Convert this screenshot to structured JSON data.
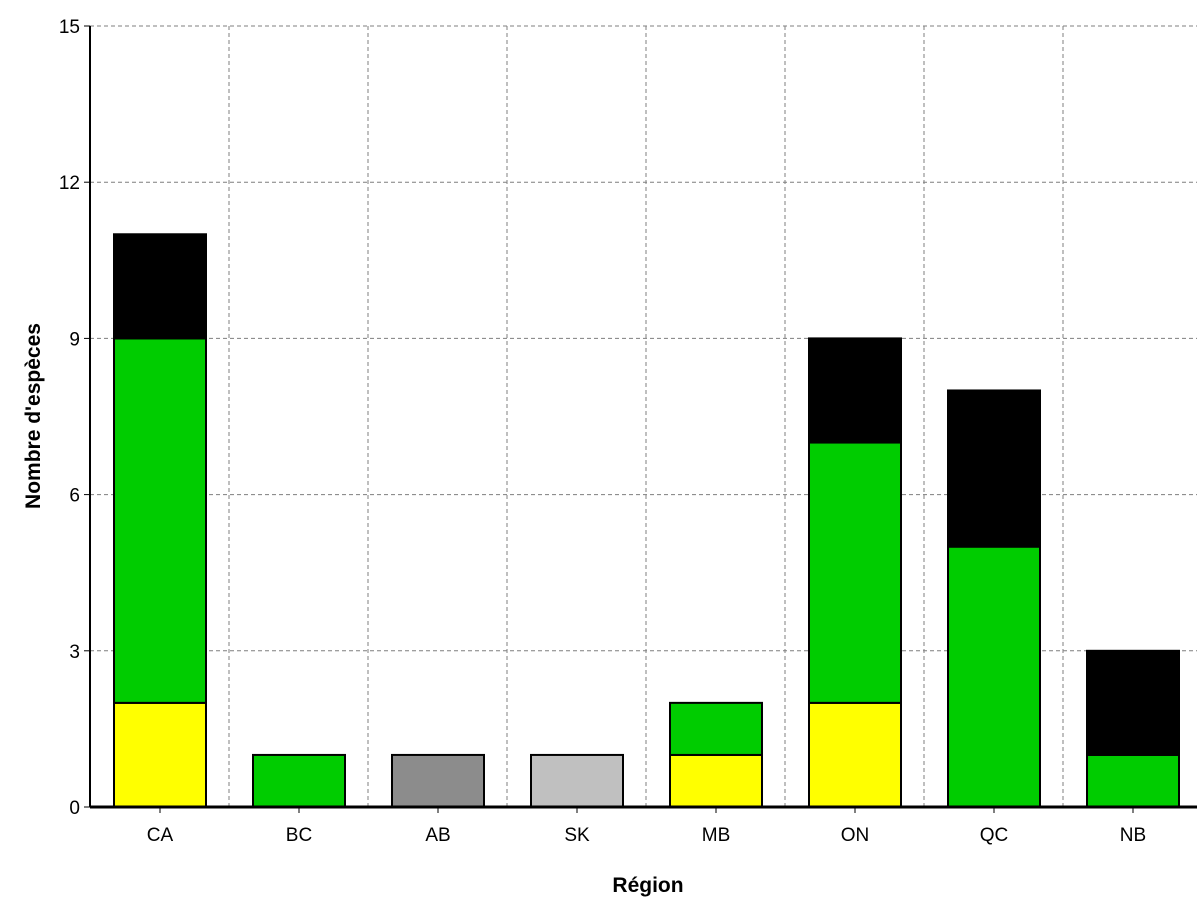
{
  "chart_data": {
    "type": "bar",
    "stacked": true,
    "title": "",
    "xlabel": "Région",
    "ylabel": "Nombre d'espèces",
    "ylim": [
      0,
      15
    ],
    "yticks": [
      "0",
      "3",
      "6",
      "9",
      "12",
      "15"
    ],
    "grid": true,
    "legend": "none",
    "categories": [
      "CA",
      "BC",
      "AB",
      "SK",
      "MB",
      "ON",
      "QC",
      "NB"
    ],
    "series": [
      {
        "color": "#ffff00",
        "values": [
          2,
          0,
          0,
          0,
          1,
          2,
          0,
          0
        ]
      },
      {
        "color": "#00cc00",
        "values": [
          7,
          1,
          0,
          0,
          1,
          5,
          5,
          1
        ]
      },
      {
        "color": "#000000",
        "values": [
          2,
          0,
          0,
          0,
          0,
          2,
          3,
          2
        ]
      },
      {
        "color": "#8c8c8c",
        "values": [
          0,
          0,
          1,
          0,
          0,
          0,
          0,
          0
        ]
      },
      {
        "color": "#c0c0c0",
        "values": [
          0,
          0,
          0,
          1,
          0,
          0,
          0,
          0
        ]
      }
    ]
  }
}
